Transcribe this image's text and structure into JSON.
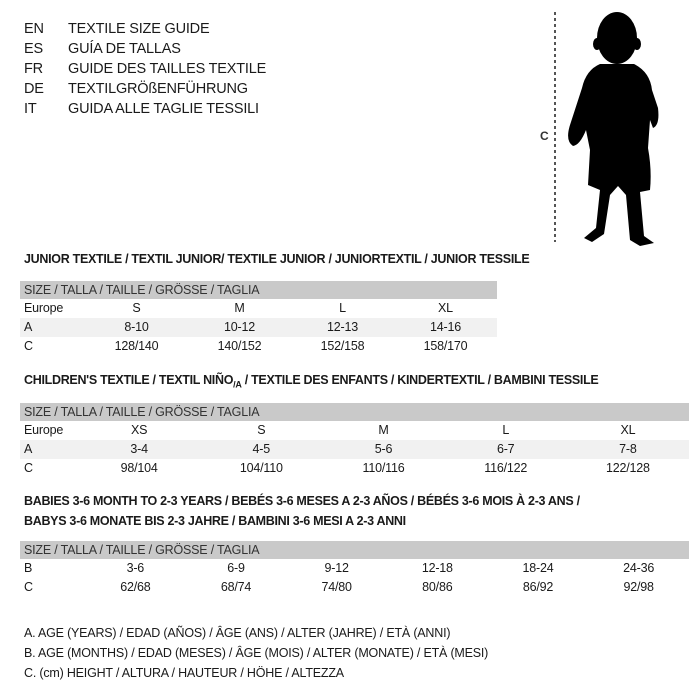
{
  "languages": [
    {
      "code": "EN",
      "text": "TEXTILE SIZE GUIDE"
    },
    {
      "code": "ES",
      "text": "GUÍA DE TALLAS"
    },
    {
      "code": "FR",
      "text": "GUIDE DES TAILLES TEXTILE"
    },
    {
      "code": "DE",
      "text": "TEXTILGRÖßENFÜHRUNG"
    },
    {
      "code": "IT",
      "text": "GUIDA ALLE TAGLIE TESSILI"
    }
  ],
  "figure": {
    "label": "C"
  },
  "junior": {
    "title": "JUNIOR TEXTILE / TEXTIL JUNIOR/ TEXTILE JUNIOR / JUNIORTEXTIL / JUNIOR TESSILE",
    "header": "SIZE / TALLA / TAILLE / GRÖSSE / TAGLIA",
    "rows": [
      {
        "label": "Europe",
        "values": [
          "S",
          "M",
          "L",
          "XL"
        ]
      },
      {
        "label": "A",
        "values": [
          "8-10",
          "10-12",
          "12-13",
          "14-16"
        ]
      },
      {
        "label": "C",
        "values": [
          "128/140",
          "140/152",
          "152/158",
          "158/170"
        ]
      }
    ]
  },
  "children": {
    "title": "CHILDREN'S TEXTILE / TEXTIL NIÑO/A / TEXTILE DES ENFANTS / KINDERTEXTIL / BAMBINI TESSILE",
    "header": "SIZE / TALLA / TAILLE / GRÖSSE / TAGLIA",
    "rows": [
      {
        "label": "Europe",
        "values": [
          "XS",
          "S",
          "M",
          "L",
          "XL"
        ]
      },
      {
        "label": "A",
        "values": [
          "3-4",
          "4-5",
          "5-6",
          "6-7",
          "7-8"
        ]
      },
      {
        "label": "C",
        "values": [
          "98/104",
          "104/110",
          "110/116",
          "116/122",
          "122/128"
        ]
      }
    ]
  },
  "babies": {
    "title_line1": "BABIES 3-6 MONTH TO 2-3 YEARS / BEBÉS 3-6 MESES A 2-3 AÑOS / BÉBÉS 3-6 MOIS À 2-3 ANS /",
    "title_line2": "BABYS 3-6 MONATE BIS 2-3 JAHRE / BAMBINI 3-6 MESI A 2-3 ANNI",
    "header": "SIZE / TALLA / TAILLE / GRÖSSE / TAGLIA",
    "rows": [
      {
        "label": "B",
        "values": [
          "3-6",
          "6-9",
          "9-12",
          "12-18",
          "18-24",
          "24-36"
        ]
      },
      {
        "label": "C",
        "values": [
          "62/68",
          "68/74",
          "74/80",
          "80/86",
          "86/92",
          "92/98"
        ]
      }
    ]
  },
  "legend": [
    "A. AGE (YEARS) / EDAD (AÑOS) / ÂGE (ANS) / ALTER (JAHRE) / ETÀ (ANNI)",
    "B. AGE (MONTHS) / EDAD (MESES) / ÂGE (MOIS) / ALTER (MONATE) / ETÀ (MESI)",
    "C. (cm) HEIGHT / ALTURA / HAUTEUR / HÖHE / ALTEZZA"
  ]
}
